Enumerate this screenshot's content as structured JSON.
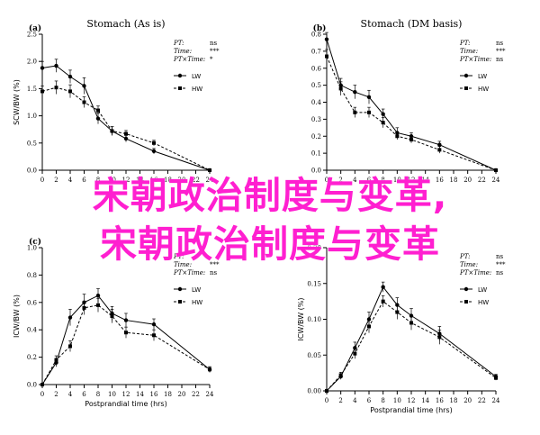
{
  "overlay": {
    "line1": "宋朝政治制度与变革,",
    "line2": "宋朝政治制度与变革",
    "color": "#ff1fd0"
  },
  "stat_legend": {
    "pt": "PT:",
    "time": "Time:",
    "ptxtime": "PT×Time:"
  },
  "chart_data": [
    {
      "type": "line",
      "panel": "a",
      "title": "Stomach (As is)",
      "xlabel": "",
      "ylabel": "SCW/BW (%)",
      "xlim": [
        0,
        24
      ],
      "ylim": [
        0,
        2.5
      ],
      "xticks": [
        0,
        2,
        4,
        6,
        8,
        10,
        12,
        14,
        16,
        18,
        20,
        22,
        24
      ],
      "yticks": [
        0.0,
        0.5,
        1.0,
        1.5,
        2.0,
        2.5
      ],
      "stats": {
        "pt": "ns",
        "time": "***",
        "ptxtime": "*"
      },
      "series": [
        {
          "name": "LW",
          "style": "solid",
          "marker": "circle",
          "x": [
            0,
            2,
            4,
            6,
            8,
            10,
            12,
            16,
            24
          ],
          "y": [
            1.88,
            1.92,
            1.72,
            1.55,
            0.95,
            0.72,
            0.58,
            0.35,
            0.0
          ],
          "err": [
            0.12,
            0.12,
            0.12,
            0.15,
            0.1,
            0.08,
            0.06,
            0.05,
            0.01
          ]
        },
        {
          "name": "HW",
          "style": "dashed",
          "marker": "square",
          "x": [
            0,
            2,
            4,
            6,
            8,
            10,
            12,
            16,
            24
          ],
          "y": [
            1.45,
            1.52,
            1.45,
            1.25,
            1.1,
            0.72,
            0.67,
            0.5,
            0.0
          ],
          "err": [
            0.1,
            0.12,
            0.12,
            0.1,
            0.08,
            0.08,
            0.06,
            0.05,
            0.01
          ]
        }
      ]
    },
    {
      "type": "line",
      "panel": "b",
      "title": "Stomach (DM basis)",
      "xlabel": "",
      "ylabel": "",
      "xlim": [
        0,
        24
      ],
      "ylim": [
        0,
        0.8
      ],
      "xticks": [
        0,
        2,
        4,
        6,
        8,
        10,
        12,
        14,
        16,
        18,
        20,
        22,
        24
      ],
      "yticks": [
        0.0,
        0.1,
        0.2,
        0.3,
        0.4,
        0.5,
        0.6,
        0.7,
        0.8
      ],
      "stats": {
        "pt": "ns",
        "time": "***",
        "ptxtime": "ns"
      },
      "series": [
        {
          "name": "LW",
          "style": "solid",
          "marker": "circle",
          "x": [
            0,
            2,
            4,
            6,
            8,
            10,
            12,
            16,
            24
          ],
          "y": [
            0.77,
            0.5,
            0.46,
            0.43,
            0.33,
            0.22,
            0.2,
            0.15,
            0.0
          ],
          "err": [
            0.04,
            0.04,
            0.04,
            0.04,
            0.03,
            0.03,
            0.02,
            0.02,
            0.005
          ]
        },
        {
          "name": "HW",
          "style": "dashed",
          "marker": "square",
          "x": [
            0,
            2,
            4,
            6,
            8,
            10,
            12,
            16,
            24
          ],
          "y": [
            0.67,
            0.48,
            0.34,
            0.34,
            0.28,
            0.2,
            0.18,
            0.12,
            0.0
          ],
          "err": [
            0.04,
            0.04,
            0.03,
            0.03,
            0.03,
            0.02,
            0.02,
            0.02,
            0.005
          ]
        }
      ]
    },
    {
      "type": "line",
      "panel": "c",
      "title": "",
      "xlabel": "Postprandial time (hrs)",
      "ylabel": "ICW/BW (%)",
      "xlim": [
        0,
        24
      ],
      "ylim": [
        0,
        1.0
      ],
      "xticks": [
        0,
        2,
        4,
        6,
        8,
        10,
        12,
        14,
        16,
        18,
        20,
        22,
        24
      ],
      "yticks": [
        0.0,
        0.2,
        0.4,
        0.6,
        0.8,
        1.0
      ],
      "stats": {
        "pt": "",
        "time": "***",
        "ptxtime": "ns"
      },
      "series": [
        {
          "name": "LW",
          "style": "solid",
          "marker": "circle",
          "x": [
            0,
            2,
            4,
            6,
            8,
            10,
            12,
            16,
            24
          ],
          "y": [
            0.0,
            0.16,
            0.49,
            0.6,
            0.65,
            0.52,
            0.47,
            0.44,
            0.11
          ],
          "err": [
            0.005,
            0.03,
            0.06,
            0.06,
            0.05,
            0.05,
            0.05,
            0.04,
            0.02
          ]
        },
        {
          "name": "HW",
          "style": "dashed",
          "marker": "square",
          "x": [
            0,
            2,
            4,
            6,
            8,
            10,
            12,
            16,
            24
          ],
          "y": [
            0.0,
            0.18,
            0.28,
            0.56,
            0.58,
            0.5,
            0.38,
            0.36,
            0.11
          ],
          "err": [
            0.005,
            0.03,
            0.04,
            0.05,
            0.05,
            0.05,
            0.04,
            0.04,
            0.02
          ]
        }
      ]
    },
    {
      "type": "line",
      "panel": "",
      "title": "",
      "xlabel": "Postprandial time (hrs)",
      "ylabel": "ICW/BW (%)",
      "xlim": [
        0,
        24
      ],
      "ylim": [
        0,
        0.2
      ],
      "xticks": [
        0,
        2,
        4,
        6,
        8,
        10,
        12,
        14,
        16,
        18,
        20,
        22,
        24
      ],
      "yticks": [
        0.0,
        0.05,
        0.1,
        0.15,
        0.2
      ],
      "stats": {
        "pt": "ns",
        "time": "***",
        "ptxtime": "ns"
      },
      "series": [
        {
          "name": "LW",
          "style": "solid",
          "marker": "circle",
          "x": [
            0,
            2,
            4,
            6,
            8,
            10,
            12,
            16,
            24
          ],
          "y": [
            0.0,
            0.02,
            0.06,
            0.1,
            0.145,
            0.12,
            0.105,
            0.08,
            0.02
          ],
          "err": [
            0.001,
            0.004,
            0.008,
            0.01,
            0.007,
            0.01,
            0.01,
            0.01,
            0.003
          ]
        },
        {
          "name": "HW",
          "style": "dashed",
          "marker": "square",
          "x": [
            0,
            2,
            4,
            6,
            8,
            10,
            12,
            16,
            24
          ],
          "y": [
            0.0,
            0.022,
            0.052,
            0.09,
            0.125,
            0.11,
            0.095,
            0.075,
            0.018
          ],
          "err": [
            0.001,
            0.004,
            0.007,
            0.009,
            0.008,
            0.01,
            0.01,
            0.01,
            0.003
          ]
        }
      ]
    }
  ]
}
